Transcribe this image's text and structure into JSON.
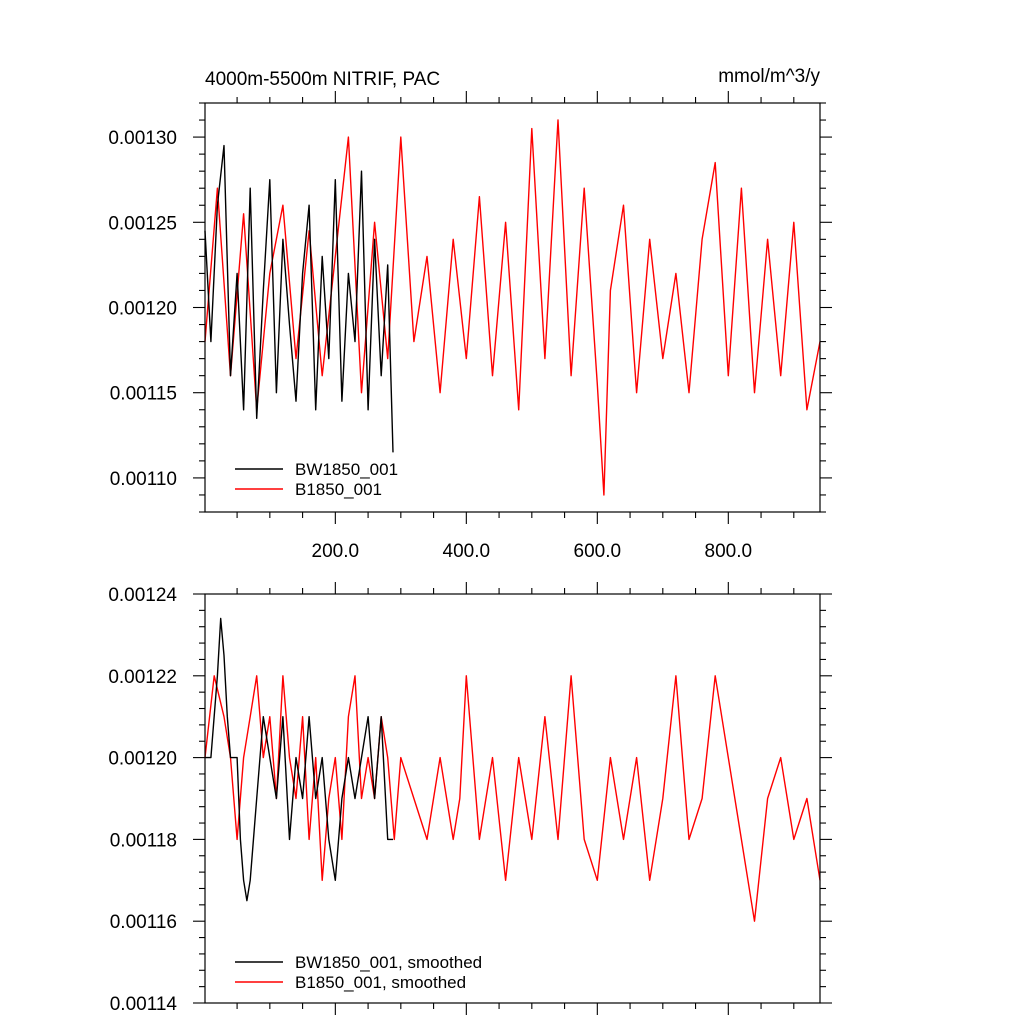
{
  "chart_data": [
    {
      "type": "line",
      "title": "4000m-5500m NITRIF, PAC",
      "units": "mmol/m^3/y",
      "xlim": [
        1,
        940
      ],
      "ylim": [
        0.00108,
        0.00132
      ],
      "x_tick_values": [
        200,
        400,
        600,
        800
      ],
      "x_tick_labels": [
        "200.0",
        "400.0",
        "600.0",
        "800.0"
      ],
      "y_tick_values": [
        0.0011,
        0.00115,
        0.0012,
        0.00125,
        0.0013
      ],
      "y_tick_labels": [
        "0.00110",
        "0.00115",
        "0.00120",
        "0.00125",
        "0.00130"
      ],
      "legend_position": "bottom-left",
      "series": [
        {
          "name": "BW1850_001",
          "color": "#000000",
          "x": [
            1,
            10,
            20,
            30,
            40,
            50,
            60,
            70,
            80,
            90,
            100,
            110,
            120,
            130,
            140,
            150,
            160,
            170,
            180,
            190,
            200,
            210,
            220,
            230,
            240,
            250,
            260,
            270,
            280,
            288
          ],
          "values": [
            0.001245,
            0.00118,
            0.00126,
            0.001295,
            0.00116,
            0.00122,
            0.00114,
            0.00127,
            0.001135,
            0.00121,
            0.001275,
            0.00115,
            0.00124,
            0.00119,
            0.001145,
            0.00122,
            0.00126,
            0.00114,
            0.00123,
            0.00117,
            0.001275,
            0.001145,
            0.00122,
            0.00118,
            0.00128,
            0.00114,
            0.00124,
            0.00116,
            0.001225,
            0.001115
          ]
        },
        {
          "name": "B1850_001",
          "color": "#ff0000",
          "x": [
            1,
            20,
            40,
            60,
            80,
            100,
            120,
            140,
            160,
            180,
            200,
            220,
            240,
            260,
            280,
            300,
            320,
            340,
            360,
            380,
            400,
            420,
            440,
            460,
            480,
            500,
            520,
            540,
            560,
            580,
            600,
            610,
            620,
            640,
            660,
            680,
            700,
            720,
            740,
            760,
            780,
            800,
            820,
            840,
            860,
            880,
            900,
            920,
            940
          ],
          "values": [
            0.00118,
            0.00127,
            0.00116,
            0.001255,
            0.00114,
            0.00122,
            0.00126,
            0.00117,
            0.001245,
            0.00116,
            0.00123,
            0.0013,
            0.00115,
            0.00125,
            0.00117,
            0.0013,
            0.00118,
            0.00123,
            0.00115,
            0.00124,
            0.00117,
            0.001265,
            0.00116,
            0.00125,
            0.00114,
            0.001305,
            0.00117,
            0.00131,
            0.00116,
            0.00127,
            0.001155,
            0.00109,
            0.00121,
            0.00126,
            0.00115,
            0.00124,
            0.00117,
            0.00122,
            0.00115,
            0.00124,
            0.001285,
            0.00116,
            0.00127,
            0.00115,
            0.00124,
            0.00116,
            0.00125,
            0.00114,
            0.00118
          ]
        }
      ]
    },
    {
      "type": "line",
      "title": "",
      "xlim": [
        1,
        940
      ],
      "ylim": [
        0.00114,
        0.00124
      ],
      "x_tick_values": [
        200,
        400,
        600,
        800
      ],
      "y_tick_values": [
        0.00114,
        0.00116,
        0.00118,
        0.0012,
        0.00122,
        0.00124
      ],
      "y_tick_labels": [
        "0.00114",
        "0.00116",
        "0.00118",
        "0.00120",
        "0.00122",
        "0.00124"
      ],
      "legend_position": "bottom-left",
      "series": [
        {
          "name": "BW1850_001, smoothed",
          "color": "#000000",
          "x": [
            1,
            10,
            20,
            25,
            30,
            35,
            40,
            50,
            55,
            60,
            65,
            70,
            80,
            90,
            100,
            110,
            120,
            130,
            140,
            150,
            160,
            170,
            180,
            190,
            200,
            210,
            220,
            230,
            240,
            250,
            260,
            270,
            280,
            288
          ],
          "values": [
            0.0012,
            0.0012,
            0.00122,
            0.001234,
            0.001225,
            0.00121,
            0.0012,
            0.0012,
            0.00118,
            0.00117,
            0.001165,
            0.00117,
            0.00119,
            0.00121,
            0.0012,
            0.00119,
            0.00121,
            0.00118,
            0.0012,
            0.00119,
            0.00121,
            0.00119,
            0.0012,
            0.00118,
            0.00117,
            0.00119,
            0.0012,
            0.00119,
            0.0012,
            0.00121,
            0.00119,
            0.00121,
            0.00118,
            0.00118
          ]
        },
        {
          "name": "B1850_001, smoothed",
          "color": "#ff0000",
          "x": [
            1,
            15,
            30,
            40,
            50,
            60,
            70,
            80,
            90,
            100,
            110,
            120,
            130,
            140,
            150,
            160,
            170,
            180,
            190,
            200,
            210,
            220,
            230,
            240,
            250,
            260,
            270,
            280,
            290,
            300,
            320,
            340,
            360,
            380,
            390,
            400,
            420,
            440,
            460,
            480,
            500,
            520,
            540,
            560,
            580,
            600,
            620,
            640,
            660,
            680,
            700,
            720,
            740,
            760,
            780,
            800,
            820,
            840,
            860,
            880,
            900,
            920,
            940
          ],
          "values": [
            0.0012,
            0.00122,
            0.00121,
            0.0012,
            0.00118,
            0.0012,
            0.00121,
            0.00122,
            0.0012,
            0.00121,
            0.00119,
            0.00122,
            0.0012,
            0.00119,
            0.00121,
            0.00118,
            0.0012,
            0.00117,
            0.00119,
            0.0012,
            0.00118,
            0.00121,
            0.00122,
            0.00119,
            0.0012,
            0.00119,
            0.00121,
            0.0012,
            0.00118,
            0.0012,
            0.00119,
            0.00118,
            0.0012,
            0.00118,
            0.00119,
            0.00122,
            0.00118,
            0.0012,
            0.00117,
            0.0012,
            0.00118,
            0.00121,
            0.00118,
            0.00122,
            0.00118,
            0.00117,
            0.0012,
            0.00118,
            0.0012,
            0.00117,
            0.00119,
            0.00122,
            0.00118,
            0.00119,
            0.00122,
            0.0012,
            0.00118,
            0.00116,
            0.00119,
            0.0012,
            0.00118,
            0.00119,
            0.00117
          ]
        }
      ]
    }
  ]
}
